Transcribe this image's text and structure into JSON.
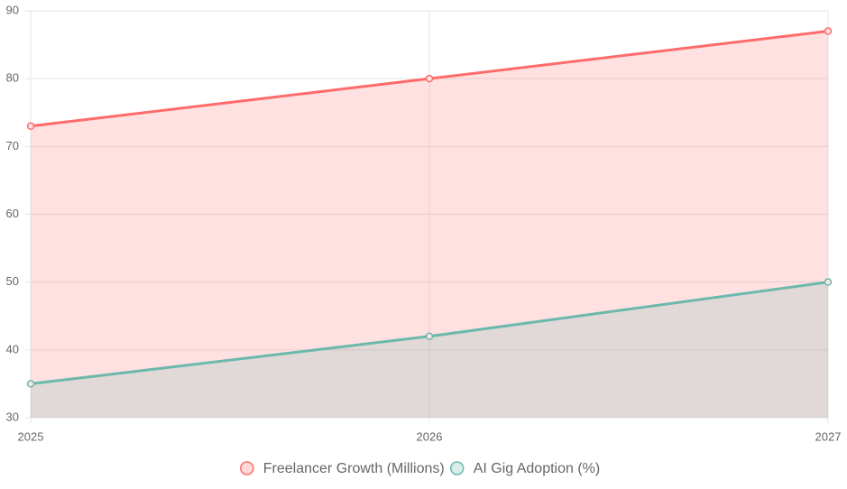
{
  "chart_data": {
    "type": "area",
    "categories": [
      "2025",
      "2026",
      "2027"
    ],
    "series": [
      {
        "name": "Freelancer Growth (Millions)",
        "color": "#ff6b6b",
        "values": [
          73,
          80,
          87
        ]
      },
      {
        "name": "AI Gig Adoption (%)",
        "color": "#6bb8ad",
        "values": [
          35,
          42,
          50
        ]
      }
    ],
    "ylim": [
      30,
      90
    ],
    "yticks": [
      30,
      40,
      50,
      60,
      70,
      80,
      90
    ],
    "grid": true,
    "legend": "bottom"
  }
}
